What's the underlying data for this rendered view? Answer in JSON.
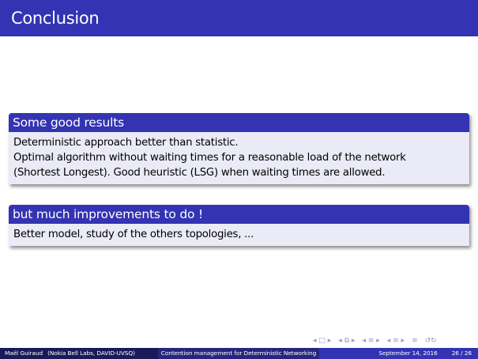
{
  "slide": {
    "title": "Conclusion",
    "blocks": [
      {
        "heading": "Some good results",
        "lines": [
          "Deterministic approach better than statistic.",
          "Optimal algorithm without waiting times for a reasonable load of the network",
          "(Shortest Longest). Good heuristic (LSG) when waiting times are allowed."
        ]
      },
      {
        "heading": "but much improvements to do !",
        "lines": [
          "Better model, study of the others topologies, ..."
        ]
      }
    ]
  },
  "navigation": {
    "icons": [
      "frame-prev-icon",
      "frame-next-icon",
      "section-prev-icon",
      "section-next-icon",
      "subsection-prev-icon",
      "subsection-next-icon",
      "align-icon",
      "search-icon"
    ],
    "glyphs": [
      "◂ □ ▸",
      "◂ ⧉ ▸",
      "◂ ≡ ▸",
      "◂ ≡ ▸",
      "≡",
      "↺↻"
    ]
  },
  "footer": {
    "author": "Maël Guiraud",
    "affiliation": "(Nokia Bell Labs, DAVID-UVSQ)",
    "talk_title": "Contention management for Deterministic Networking",
    "date": "September 14, 2016",
    "page": "26 / 26"
  },
  "colors": {
    "primary": "#3333b3",
    "block_body": "#ebebf7",
    "footer_dark": "#1a1a59",
    "footer_mid": "#26267f"
  }
}
